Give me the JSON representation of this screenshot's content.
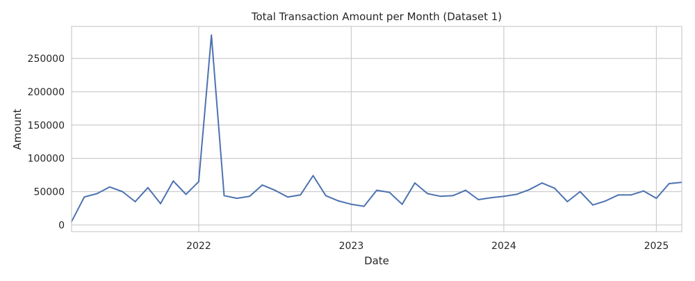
{
  "chart_data": {
    "type": "line",
    "title": "Total Transaction Amount per Month (Dataset 1)",
    "xlabel": "Date",
    "ylabel": "Amount",
    "xlim": [
      "2021-03",
      "2025-03"
    ],
    "ylim": [
      -10000,
      298000
    ],
    "x_ticks": [
      "2022",
      "2023",
      "2024",
      "2025"
    ],
    "y_ticks": [
      0,
      50000,
      100000,
      150000,
      200000,
      250000
    ],
    "grid": true,
    "legend": "none",
    "line_color": "#4c72b0",
    "grid_color": "#cccccc",
    "series": [
      {
        "x": [
          "2021-03",
          "2021-04",
          "2021-05",
          "2021-06",
          "2021-07",
          "2021-08",
          "2021-09",
          "2021-10",
          "2021-11",
          "2021-12",
          "2022-01",
          "2022-02",
          "2022-03",
          "2022-04",
          "2022-05",
          "2022-06",
          "2022-07",
          "2022-08",
          "2022-09",
          "2022-10",
          "2022-11",
          "2022-12",
          "2023-01",
          "2023-02",
          "2023-03",
          "2023-04",
          "2023-05",
          "2023-06",
          "2023-07",
          "2023-08",
          "2023-09",
          "2023-10",
          "2023-11",
          "2023-12",
          "2024-01",
          "2024-02",
          "2024-03",
          "2024-04",
          "2024-05",
          "2024-06",
          "2024-07",
          "2024-08",
          "2024-09",
          "2024-10",
          "2024-11",
          "2024-12",
          "2025-01",
          "2025-02",
          "2025-03"
        ],
        "values": [
          5000,
          42000,
          47000,
          57000,
          50000,
          35000,
          56000,
          32000,
          66000,
          46000,
          65000,
          285000,
          44000,
          40000,
          43000,
          60000,
          52000,
          42000,
          45000,
          74000,
          44000,
          36000,
          31000,
          28000,
          52000,
          49000,
          31000,
          63000,
          47000,
          43000,
          44000,
          52000,
          38000,
          41000,
          43000,
          46000,
          53000,
          63000,
          55000,
          35000,
          50000,
          30000,
          36000,
          45000,
          45000,
          51000,
          40000,
          62000,
          64000
        ]
      }
    ]
  }
}
